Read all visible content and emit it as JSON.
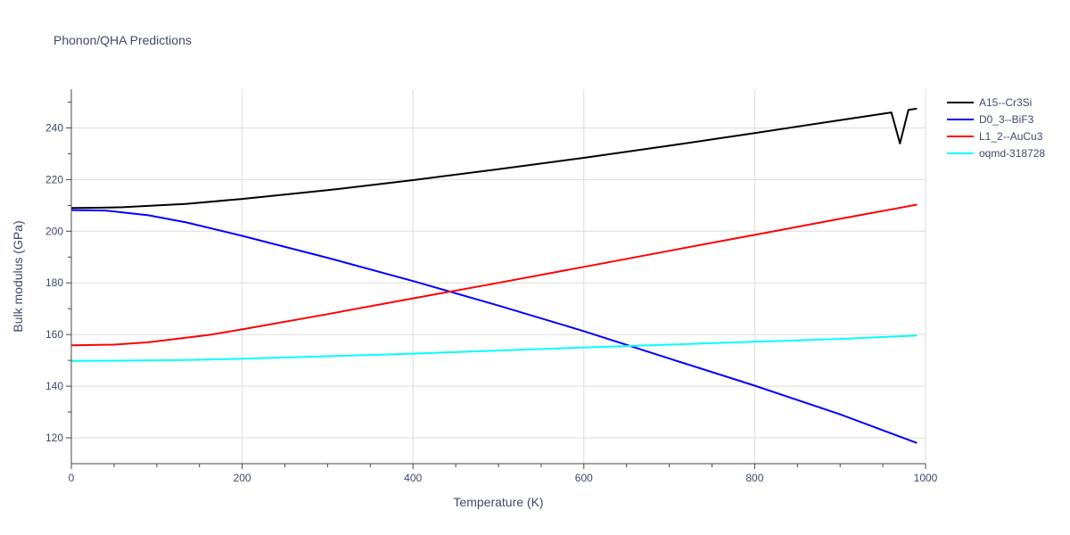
{
  "chart_data": {
    "type": "line",
    "title": "Phonon/QHA Predictions",
    "xlabel": "Temperature (K)",
    "ylabel": "Bulk modulus (GPa)",
    "xlim": [
      0,
      1000
    ],
    "ylim": [
      110,
      255
    ],
    "xticks": [
      0,
      200,
      400,
      600,
      800,
      1000
    ],
    "yticks": [
      120,
      140,
      160,
      180,
      200,
      220,
      240
    ],
    "grid": true,
    "legend_position": "top-right",
    "series": [
      {
        "name": "A15--Cr3Si",
        "color": "#000000",
        "x": [
          0,
          30,
          60,
          90,
          135,
          200,
          300,
          400,
          500,
          600,
          700,
          800,
          900,
          960,
          970,
          980,
          990
        ],
        "y": [
          209,
          209.1,
          209.3,
          209.8,
          210.6,
          212.5,
          215.9,
          219.8,
          224,
          228.4,
          233.1,
          238,
          243,
          246,
          234,
          247,
          247.5
        ]
      },
      {
        "name": "D0_3--BiF3",
        "color": "#0000ff",
        "x": [
          0,
          40,
          60,
          90,
          135,
          200,
          300,
          400,
          500,
          600,
          700,
          800,
          900,
          990
        ],
        "y": [
          208.2,
          208,
          207.3,
          206.2,
          203.4,
          198.2,
          189.7,
          180.7,
          171.2,
          161.3,
          150.7,
          140.2,
          129.1,
          118
        ]
      },
      {
        "name": "L1_2--AuCu3",
        "color": "#ff0000",
        "x": [
          0,
          50,
          90,
          135,
          160,
          200,
          300,
          400,
          500,
          600,
          700,
          800,
          900,
          990
        ],
        "y": [
          155.8,
          156.1,
          157,
          158.8,
          159.8,
          162,
          167.9,
          174,
          180,
          186.2,
          192.4,
          198.6,
          204.8,
          210.3
        ]
      },
      {
        "name": "oqmd-318728",
        "color": "#00ffff",
        "x": [
          0,
          70,
          135,
          200,
          300,
          400,
          500,
          600,
          700,
          800,
          900,
          990
        ],
        "y": [
          149.8,
          149.9,
          150.1,
          150.6,
          151.6,
          152.6,
          153.8,
          155,
          156.1,
          157.2,
          158.3,
          159.6
        ]
      }
    ]
  }
}
